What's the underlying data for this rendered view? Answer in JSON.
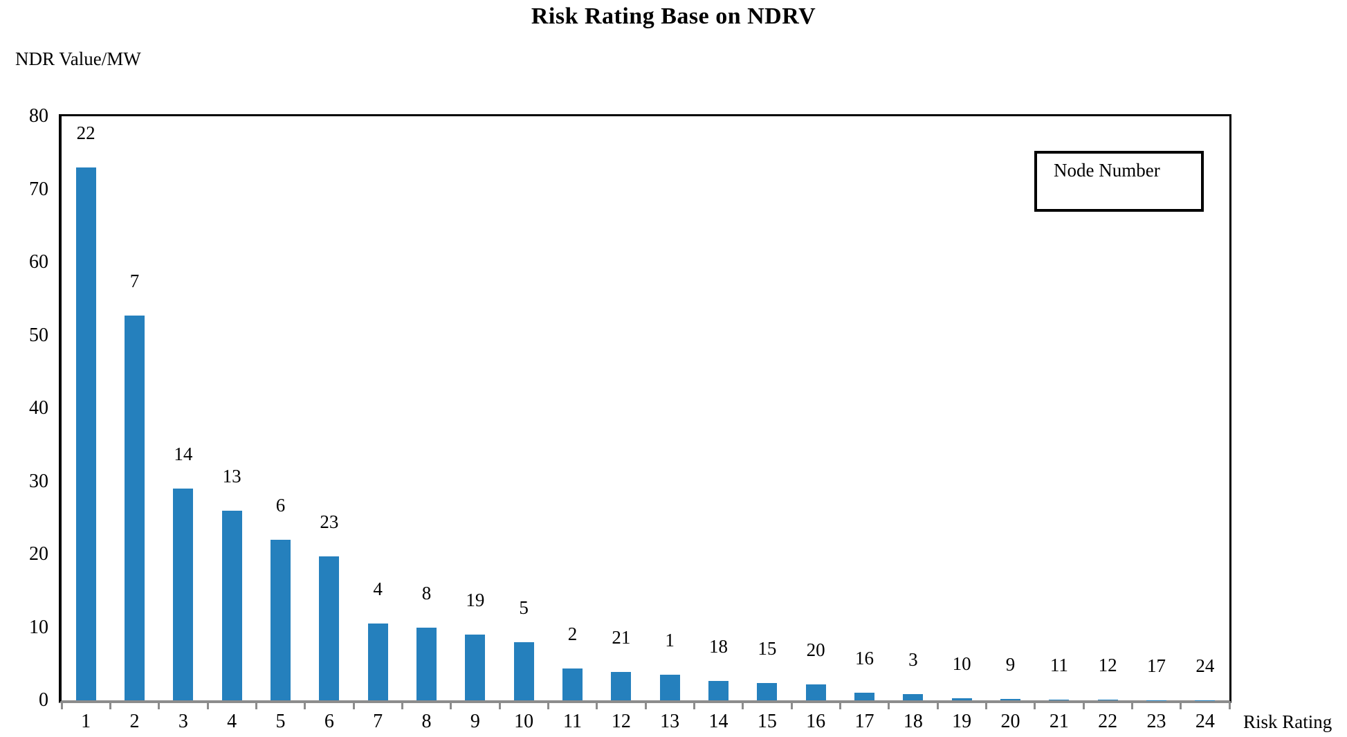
{
  "chart_data": {
    "type": "bar",
    "title": "Risk Rating Base on NDRV",
    "xlabel": "Risk Rating",
    "ylabel": "NDR Value/MW",
    "categories": [
      1,
      2,
      3,
      4,
      5,
      6,
      7,
      8,
      9,
      10,
      11,
      12,
      13,
      14,
      15,
      16,
      17,
      18,
      19,
      20,
      21,
      22,
      23,
      24
    ],
    "values": [
      73,
      52.7,
      29,
      26,
      22,
      19.7,
      10.5,
      10,
      9,
      8,
      4.4,
      3.9,
      3.5,
      2.7,
      2.4,
      2.2,
      1.0,
      0.9,
      0.25,
      0.2,
      0.06,
      0.05,
      0.02,
      0.01
    ],
    "bar_labels": [
      "22",
      "7",
      "14",
      "13",
      "6",
      "23",
      "4",
      "8",
      "19",
      "5",
      "2",
      "21",
      "1",
      "18",
      "15",
      "20",
      "16",
      "3",
      "10",
      "9",
      "11",
      "12",
      "17",
      "24"
    ],
    "bar_labels_legend": "Node Number",
    "ylim": [
      0,
      80
    ],
    "yticks": [
      0,
      10,
      20,
      30,
      40,
      50,
      60,
      70,
      80
    ],
    "grid": false,
    "legend_position": "top-right-inside"
  },
  "colors": {
    "bar": "#2580BD",
    "x_axis": "#8C8C8C",
    "y_axis": "#000000",
    "frame": "#000000",
    "text": "#000000"
  }
}
